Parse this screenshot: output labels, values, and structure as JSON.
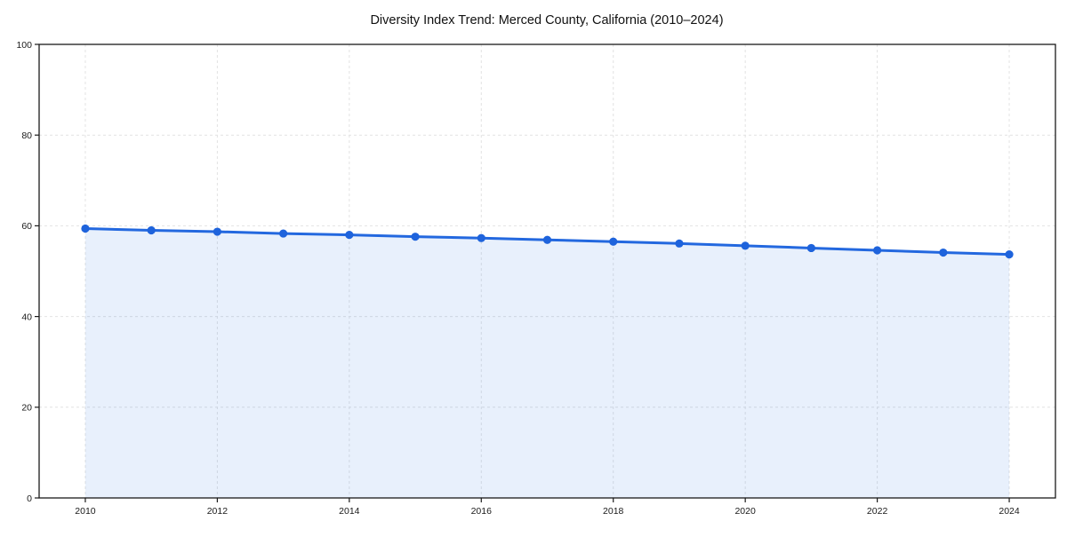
{
  "chart_data": {
    "type": "line",
    "title": "Diversity Index Trend: Merced County, California (2010–2024)",
    "xlabel": "",
    "ylabel": "",
    "x": [
      2010,
      2011,
      2012,
      2013,
      2014,
      2015,
      2016,
      2017,
      2018,
      2019,
      2020,
      2021,
      2022,
      2023,
      2024
    ],
    "series": [
      {
        "name": "Diversity Index",
        "values": [
          59.4,
          59.0,
          58.7,
          58.3,
          58.0,
          57.6,
          57.3,
          56.9,
          56.5,
          56.1,
          55.6,
          55.1,
          54.6,
          54.1,
          53.7
        ]
      }
    ],
    "xlim": [
      2009.3,
      2024.7
    ],
    "ylim": [
      0,
      100
    ],
    "xticks": [
      2010,
      2012,
      2014,
      2016,
      2018,
      2020,
      2022,
      2024
    ],
    "yticks": [
      0,
      20,
      40,
      60,
      80,
      100
    ],
    "grid": true,
    "grid_style": "dashed",
    "legend_position": "none",
    "marker": "circle",
    "area_fill": true,
    "colors": {
      "line": "#2368df",
      "marker": "#1e63dc",
      "fill": "rgba(34,104,223,0.10)",
      "grid": "#e2e2e2",
      "spine": "#1a1a1a",
      "text": "#1a1a1a",
      "title": "#111111",
      "background": "#ffffff"
    }
  }
}
